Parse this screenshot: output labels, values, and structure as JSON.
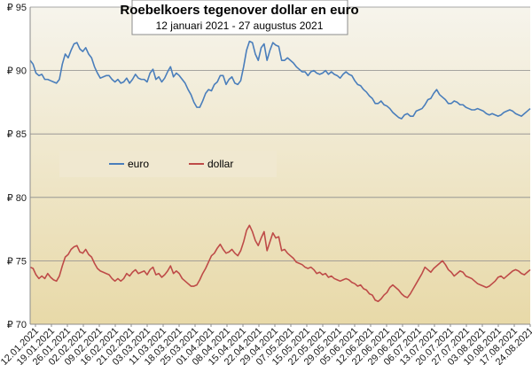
{
  "chart_data": {
    "type": "line",
    "title": "Roebelkoers tegenover dollar en euro",
    "subtitle": "12 januari 2021 - 27 augustus 2021",
    "xlabel": "",
    "ylabel": "",
    "ylim": [
      70,
      95
    ],
    "yticks": [
      {
        "value": 70,
        "label": "₽ 70"
      },
      {
        "value": 75,
        "label": "₽ 75"
      },
      {
        "value": 80,
        "label": "₽ 80"
      },
      {
        "value": 85,
        "label": "₽ 85"
      },
      {
        "value": 90,
        "label": "₽ 90"
      },
      {
        "value": 95,
        "label": "₽ 95"
      }
    ],
    "xticks": [
      "12.01.2021",
      "19.01.2021",
      "26.01.2021",
      "02.02.2021",
      "09.02.2021",
      "16.02.2021",
      "21.02.2021",
      "03.03.2021",
      "11.03.2021",
      "18.03.2021",
      "25.03.2021",
      "01.04.2021",
      "08.04.2021",
      "15.04.2021",
      "22.04.2021",
      "29.04.2021",
      "07.05.2021",
      "15.05.2021",
      "22.05.2021",
      "29.05.2021",
      "05.06.2021",
      "12.06.2021",
      "22.06.2021",
      "29.06.2021",
      "06.07.2021",
      "13.07.2021",
      "20.07.2021",
      "27.07.2021",
      "03.08.2021",
      "10.08.2021",
      "17.08.2021",
      "24.08.2021"
    ],
    "grid": true,
    "legend": "center-left",
    "background_gradient": [
      "#f6f4ec",
      "#e8d9a8"
    ],
    "series": [
      {
        "name": "euro",
        "color": "#4a7ebb",
        "values": [
          90.8,
          90.5,
          89.8,
          89.6,
          89.7,
          89.3,
          89.3,
          89.2,
          89.1,
          89.0,
          89.3,
          90.5,
          91.3,
          91.0,
          91.6,
          92.1,
          92.2,
          91.7,
          91.5,
          91.8,
          91.3,
          91.0,
          90.3,
          89.8,
          89.4,
          89.5,
          89.6,
          89.6,
          89.3,
          89.1,
          89.3,
          89.0,
          89.1,
          89.4,
          89.0,
          89.3,
          89.7,
          89.4,
          89.3,
          89.3,
          89.1,
          89.8,
          90.1,
          89.3,
          89.5,
          89.1,
          89.4,
          89.9,
          90.3,
          89.5,
          89.8,
          89.6,
          89.3,
          89.0,
          88.5,
          88.1,
          87.5,
          87.1,
          87.1,
          87.6,
          88.2,
          88.5,
          88.4,
          88.9,
          89.1,
          89.6,
          89.6,
          88.9,
          89.3,
          89.5,
          89.0,
          88.9,
          89.2,
          90.3,
          91.6,
          92.3,
          92.2,
          91.3,
          90.8,
          91.8,
          92.1,
          90.8,
          91.6,
          92.2,
          92.0,
          91.9,
          90.8,
          90.8,
          91.0,
          90.8,
          90.6,
          90.3,
          90.1,
          89.9,
          89.9,
          89.6,
          89.9,
          90.0,
          89.8,
          89.7,
          89.8,
          90.0,
          89.7,
          89.9,
          89.7,
          89.6,
          89.4,
          89.7,
          89.9,
          89.7,
          89.6,
          89.2,
          88.9,
          88.8,
          88.5,
          88.3,
          88.0,
          87.8,
          87.4,
          87.4,
          87.6,
          87.3,
          87.2,
          87.0,
          86.7,
          86.5,
          86.3,
          86.2,
          86.5,
          86.6,
          86.4,
          86.4,
          86.8,
          86.9,
          87.0,
          87.3,
          87.7,
          87.8,
          88.2,
          88.5,
          88.1,
          87.9,
          87.7,
          87.4,
          87.4,
          87.6,
          87.5,
          87.3,
          87.3,
          87.1,
          87.0,
          86.9,
          86.9,
          87.0,
          86.9,
          86.8,
          86.6,
          86.5,
          86.6,
          86.5,
          86.4,
          86.5,
          86.7,
          86.8,
          86.9,
          86.8,
          86.6,
          86.5,
          86.4,
          86.6,
          86.8,
          87.0
        ]
      },
      {
        "name": "dollar",
        "color": "#be4b48",
        "values": [
          74.5,
          74.4,
          73.9,
          73.6,
          73.8,
          73.6,
          74.0,
          73.7,
          73.5,
          73.4,
          73.8,
          74.6,
          75.3,
          75.5,
          75.9,
          76.1,
          76.2,
          75.7,
          75.6,
          75.9,
          75.5,
          75.3,
          74.8,
          74.4,
          74.2,
          74.1,
          74.0,
          73.9,
          73.6,
          73.4,
          73.6,
          73.4,
          73.6,
          74.0,
          73.8,
          74.1,
          74.3,
          74.0,
          74.1,
          74.2,
          73.9,
          74.3,
          74.5,
          73.9,
          74.0,
          73.7,
          73.9,
          74.2,
          74.6,
          74.0,
          74.2,
          74.0,
          73.6,
          73.4,
          73.2,
          73.0,
          73.0,
          73.1,
          73.5,
          74.0,
          74.4,
          74.9,
          75.4,
          75.6,
          76.0,
          76.3,
          75.9,
          75.6,
          75.7,
          75.9,
          75.6,
          75.4,
          75.8,
          76.5,
          77.4,
          77.8,
          77.3,
          76.6,
          76.2,
          76.8,
          77.3,
          75.8,
          76.5,
          77.2,
          76.8,
          76.9,
          75.8,
          75.9,
          75.6,
          75.4,
          75.2,
          74.9,
          74.8,
          74.7,
          74.5,
          74.4,
          74.5,
          74.3,
          74.0,
          74.1,
          73.9,
          74.0,
          73.7,
          73.8,
          73.6,
          73.5,
          73.4,
          73.5,
          73.6,
          73.5,
          73.3,
          73.2,
          73.0,
          73.1,
          72.8,
          72.7,
          72.4,
          72.3,
          71.9,
          71.8,
          72.0,
          72.3,
          72.5,
          72.9,
          73.1,
          72.9,
          72.7,
          72.4,
          72.2,
          72.1,
          72.4,
          72.8,
          73.2,
          73.6,
          74.0,
          74.5,
          74.3,
          74.1,
          74.4,
          74.6,
          74.8,
          75.0,
          74.7,
          74.3,
          74.1,
          73.8,
          74.0,
          74.2,
          74.1,
          73.8,
          73.7,
          73.6,
          73.4,
          73.2,
          73.1,
          73.0,
          72.9,
          73.0,
          73.2,
          73.4,
          73.7,
          73.8,
          73.6,
          73.8,
          74.0,
          74.2,
          74.3,
          74.2,
          74.0,
          73.9,
          74.1,
          74.3
        ]
      }
    ]
  }
}
